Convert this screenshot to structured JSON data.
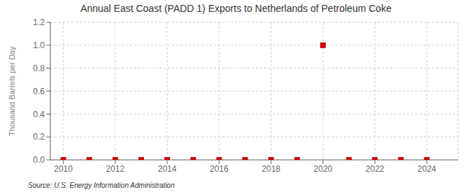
{
  "chart_data": {
    "type": "scatter",
    "title": "Annual East Coast (PADD 1) Exports to Netherlands of Petroleum Coke",
    "ylabel": "Thousand Barrels per Day",
    "annotations": [
      "Source: U.S. Energy Information Administration"
    ],
    "x": [
      2010,
      2011,
      2012,
      2013,
      2014,
      2015,
      2016,
      2017,
      2018,
      2019,
      2020,
      2021,
      2022,
      2023,
      2024
    ],
    "values": [
      0.0,
      0.0,
      0.0,
      0.0,
      0.0,
      0.0,
      0.0,
      0.0,
      0.0,
      0.0,
      1.0,
      0.0,
      0.0,
      0.0,
      0.0
    ],
    "color": "#cc0000",
    "marker": "square",
    "grid": true,
    "xlim": [
      2009.5,
      2025.2
    ],
    "xticks": [
      2010,
      2012,
      2014,
      2016,
      2018,
      2020,
      2022,
      2024
    ],
    "ylim": [
      0.0,
      1.2
    ],
    "yticks": [
      {
        "value": 0,
        "label": "0.0"
      },
      0.2,
      0.4,
      0.6,
      0.8,
      {
        "value": 1,
        "label": "1.0"
      },
      1.2
    ]
  }
}
